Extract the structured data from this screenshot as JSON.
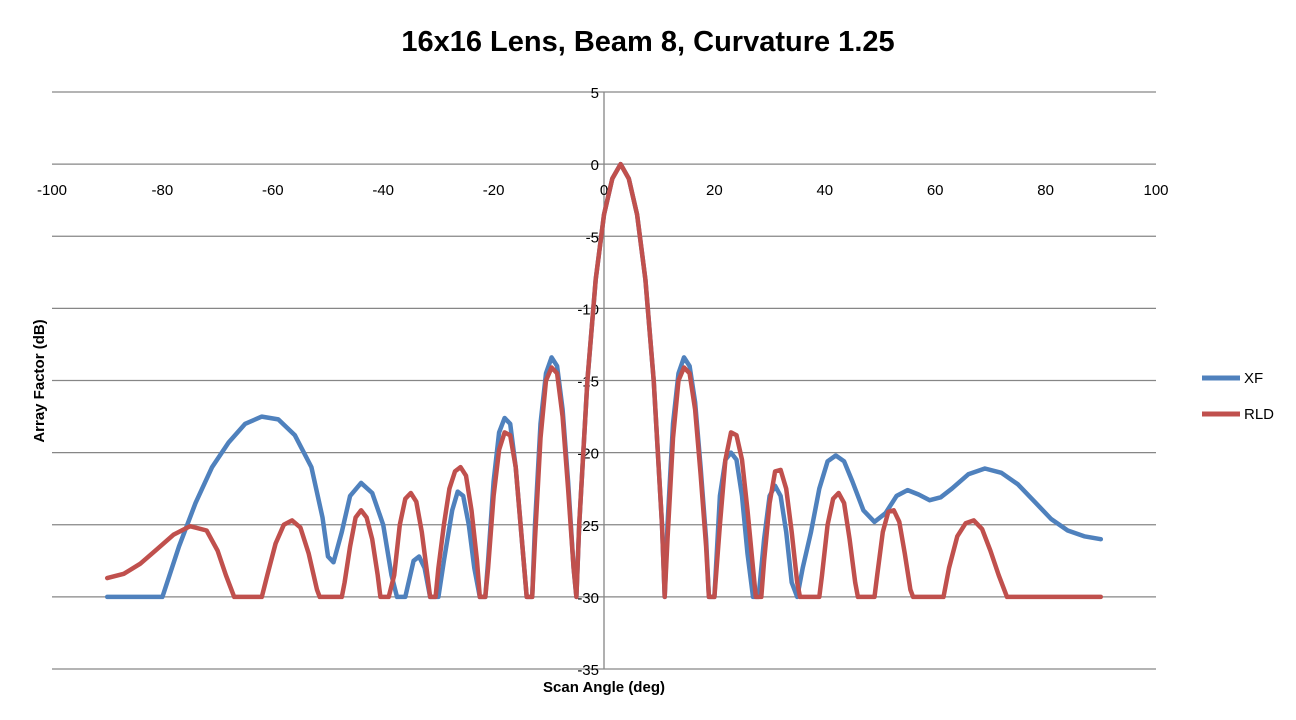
{
  "chart_data": {
    "type": "line",
    "title": "16x16 Lens, Beam 8, Curvature 1.25",
    "xlabel": "Scan Angle (deg)",
    "ylabel": "Array Factor (dB)",
    "xlim": [
      -100,
      100
    ],
    "ylim": [
      -35,
      5
    ],
    "x_ticks": [
      "-100",
      "-80",
      "-60",
      "-40",
      "-20",
      "0",
      "20",
      "40",
      "60",
      "80",
      "100"
    ],
    "y_ticks": [
      "5",
      "0",
      "-5",
      "-10",
      "-15",
      "-20",
      "-25",
      "-30",
      "-35"
    ],
    "grid": true,
    "legend": "right",
    "series": [
      {
        "name": "XF",
        "color": "#4F81BD",
        "points": [
          [
            -90,
            -30
          ],
          [
            -80,
            -30
          ],
          [
            -77,
            -26.5
          ],
          [
            -74,
            -23.5
          ],
          [
            -71,
            -21
          ],
          [
            -68,
            -19.3
          ],
          [
            -65,
            -18
          ],
          [
            -62,
            -17.5
          ],
          [
            -59,
            -17.7
          ],
          [
            -56,
            -18.8
          ],
          [
            -53,
            -21
          ],
          [
            -51,
            -24.5
          ],
          [
            -50,
            -27.2
          ],
          [
            -49,
            -27.6
          ],
          [
            -47.5,
            -25.5
          ],
          [
            -46,
            -23
          ],
          [
            -44,
            -22.1
          ],
          [
            -42,
            -22.8
          ],
          [
            -40,
            -25
          ],
          [
            -38.5,
            -28.5
          ],
          [
            -37.5,
            -30
          ],
          [
            -36,
            -30
          ],
          [
            -34.5,
            -27.5
          ],
          [
            -33.5,
            -27.2
          ],
          [
            -32.5,
            -28
          ],
          [
            -31.5,
            -30
          ],
          [
            -30,
            -30
          ],
          [
            -29,
            -27.5
          ],
          [
            -27.5,
            -24
          ],
          [
            -26.5,
            -22.7
          ],
          [
            -25.5,
            -23
          ],
          [
            -24.5,
            -25
          ],
          [
            -23.5,
            -28
          ],
          [
            -22.5,
            -30
          ],
          [
            -21.5,
            -30
          ],
          [
            -21,
            -27.5
          ],
          [
            -20,
            -22
          ],
          [
            -19,
            -18.6
          ],
          [
            -18,
            -17.6
          ],
          [
            -17,
            -18
          ],
          [
            -16,
            -21
          ],
          [
            -15,
            -25.5
          ],
          [
            -14,
            -30
          ],
          [
            -13,
            -30
          ],
          [
            -12.5,
            -25
          ],
          [
            -11.5,
            -18
          ],
          [
            -10.5,
            -14.5
          ],
          [
            -9.5,
            -13.4
          ],
          [
            -8.5,
            -14
          ],
          [
            -7.5,
            -17
          ],
          [
            -6.5,
            -22
          ],
          [
            -5.5,
            -28
          ],
          [
            -5,
            -30
          ],
          [
            -4.5,
            -25
          ],
          [
            -3,
            -15
          ],
          [
            -1.5,
            -8
          ],
          [
            0,
            -3.5
          ],
          [
            1.5,
            -1
          ],
          [
            3,
            0
          ],
          [
            4.5,
            -1
          ],
          [
            6,
            -3.5
          ],
          [
            7.5,
            -8
          ],
          [
            9,
            -15
          ],
          [
            10.5,
            -25
          ],
          [
            11,
            -30
          ],
          [
            11.5,
            -25
          ],
          [
            12.5,
            -18
          ],
          [
            13.5,
            -14.5
          ],
          [
            14.5,
            -13.4
          ],
          [
            15.5,
            -14
          ],
          [
            16.5,
            -16.5
          ],
          [
            17.5,
            -21
          ],
          [
            18.5,
            -26
          ],
          [
            19,
            -30
          ],
          [
            20,
            -30
          ],
          [
            21,
            -23
          ],
          [
            22,
            -20.5
          ],
          [
            23,
            -20
          ],
          [
            24,
            -20.5
          ],
          [
            25,
            -23
          ],
          [
            26,
            -27
          ],
          [
            27,
            -30
          ],
          [
            28,
            -30
          ],
          [
            29,
            -26
          ],
          [
            30,
            -23
          ],
          [
            31,
            -22.3
          ],
          [
            32,
            -23
          ],
          [
            33,
            -25.5
          ],
          [
            34,
            -29
          ],
          [
            35,
            -30
          ],
          [
            36,
            -28
          ],
          [
            37.5,
            -25.5
          ],
          [
            39,
            -22.5
          ],
          [
            40.5,
            -20.6
          ],
          [
            42,
            -20.2
          ],
          [
            43.5,
            -20.6
          ],
          [
            45,
            -22
          ],
          [
            47,
            -24
          ],
          [
            49,
            -24.8
          ],
          [
            51,
            -24.2
          ],
          [
            53,
            -23
          ],
          [
            55,
            -22.6
          ],
          [
            57,
            -22.9
          ],
          [
            59,
            -23.3
          ],
          [
            61,
            -23.1
          ],
          [
            63,
            -22.5
          ],
          [
            66,
            -21.5
          ],
          [
            69,
            -21.1
          ],
          [
            72,
            -21.4
          ],
          [
            75,
            -22.2
          ],
          [
            78,
            -23.4
          ],
          [
            81,
            -24.6
          ],
          [
            84,
            -25.4
          ],
          [
            87,
            -25.8
          ],
          [
            90,
            -26
          ]
        ]
      },
      {
        "name": "RLD",
        "color": "#C0504D",
        "points": [
          [
            -90,
            -28.7
          ],
          [
            -87,
            -28.4
          ],
          [
            -84,
            -27.7
          ],
          [
            -81,
            -26.7
          ],
          [
            -78,
            -25.7
          ],
          [
            -75,
            -25.1
          ],
          [
            -72,
            -25.4
          ],
          [
            -70,
            -26.8
          ],
          [
            -68.5,
            -28.5
          ],
          [
            -67,
            -30
          ],
          [
            -62,
            -30
          ],
          [
            -61,
            -28.5
          ],
          [
            -59.5,
            -26.3
          ],
          [
            -58,
            -25
          ],
          [
            -56.5,
            -24.7
          ],
          [
            -55,
            -25.2
          ],
          [
            -53.5,
            -27
          ],
          [
            -52,
            -29.5
          ],
          [
            -51.5,
            -30
          ],
          [
            -47.5,
            -30
          ],
          [
            -47,
            -29
          ],
          [
            -46,
            -26.5
          ],
          [
            -45,
            -24.5
          ],
          [
            -44,
            -24
          ],
          [
            -43,
            -24.5
          ],
          [
            -42,
            -26
          ],
          [
            -41,
            -28.5
          ],
          [
            -40.5,
            -30
          ],
          [
            -39,
            -30
          ],
          [
            -38,
            -28.5
          ],
          [
            -37,
            -25
          ],
          [
            -36,
            -23.2
          ],
          [
            -35,
            -22.8
          ],
          [
            -34,
            -23.4
          ],
          [
            -33,
            -25.5
          ],
          [
            -32,
            -28.5
          ],
          [
            -31.5,
            -30
          ],
          [
            -30.5,
            -30
          ],
          [
            -30,
            -28
          ],
          [
            -29,
            -25
          ],
          [
            -28,
            -22.5
          ],
          [
            -27,
            -21.3
          ],
          [
            -26,
            -21
          ],
          [
            -25,
            -21.6
          ],
          [
            -24,
            -24
          ],
          [
            -23,
            -27.5
          ],
          [
            -22.5,
            -30
          ],
          [
            -21.5,
            -30
          ],
          [
            -21,
            -28
          ],
          [
            -20,
            -23
          ],
          [
            -19,
            -19.8
          ],
          [
            -18,
            -18.6
          ],
          [
            -17,
            -18.8
          ],
          [
            -16,
            -21
          ],
          [
            -15,
            -25.5
          ],
          [
            -14,
            -30
          ],
          [
            -13,
            -30
          ],
          [
            -12.5,
            -26
          ],
          [
            -11.5,
            -19
          ],
          [
            -10.5,
            -15
          ],
          [
            -9.5,
            -14.1
          ],
          [
            -8.5,
            -14.5
          ],
          [
            -7.5,
            -17.5
          ],
          [
            -6.5,
            -22.5
          ],
          [
            -5.5,
            -28
          ],
          [
            -5,
            -30
          ],
          [
            -4.5,
            -25
          ],
          [
            -3,
            -15
          ],
          [
            -1.5,
            -8
          ],
          [
            0,
            -3.5
          ],
          [
            1.5,
            -1
          ],
          [
            3,
            0
          ],
          [
            4.5,
            -1
          ],
          [
            6,
            -3.5
          ],
          [
            7.5,
            -8
          ],
          [
            9,
            -15
          ],
          [
            10.5,
            -25
          ],
          [
            11,
            -30
          ],
          [
            11.5,
            -26
          ],
          [
            12.5,
            -19
          ],
          [
            13.5,
            -15
          ],
          [
            14.5,
            -14.1
          ],
          [
            15.5,
            -14.5
          ],
          [
            16.5,
            -17
          ],
          [
            17.5,
            -21.5
          ],
          [
            18.5,
            -26.5
          ],
          [
            19,
            -30
          ],
          [
            20,
            -30
          ],
          [
            21,
            -25
          ],
          [
            22,
            -20.5
          ],
          [
            23,
            -18.6
          ],
          [
            24,
            -18.8
          ],
          [
            25,
            -20.5
          ],
          [
            26,
            -24
          ],
          [
            27,
            -28
          ],
          [
            27.5,
            -30
          ],
          [
            28.5,
            -30
          ],
          [
            29,
            -27.5
          ],
          [
            30,
            -23.5
          ],
          [
            31,
            -21.3
          ],
          [
            32,
            -21.2
          ],
          [
            33,
            -22.5
          ],
          [
            34,
            -25.5
          ],
          [
            35,
            -29
          ],
          [
            35.5,
            -30
          ],
          [
            39,
            -30
          ],
          [
            39.5,
            -28.5
          ],
          [
            40.5,
            -25
          ],
          [
            41.5,
            -23.2
          ],
          [
            42.5,
            -22.8
          ],
          [
            43.5,
            -23.5
          ],
          [
            44.5,
            -26
          ],
          [
            45.5,
            -29
          ],
          [
            46,
            -30
          ],
          [
            49,
            -30
          ],
          [
            49.5,
            -28.5
          ],
          [
            50.5,
            -25.5
          ],
          [
            51.5,
            -24.1
          ],
          [
            52.5,
            -24
          ],
          [
            53.5,
            -24.8
          ],
          [
            54.5,
            -27
          ],
          [
            55.5,
            -29.5
          ],
          [
            56,
            -30
          ],
          [
            61.5,
            -30
          ],
          [
            62.5,
            -28
          ],
          [
            64,
            -25.8
          ],
          [
            65.5,
            -24.9
          ],
          [
            67,
            -24.7
          ],
          [
            68.5,
            -25.3
          ],
          [
            70,
            -26.8
          ],
          [
            71.5,
            -28.5
          ],
          [
            73,
            -30
          ],
          [
            90,
            -30
          ]
        ]
      }
    ]
  }
}
